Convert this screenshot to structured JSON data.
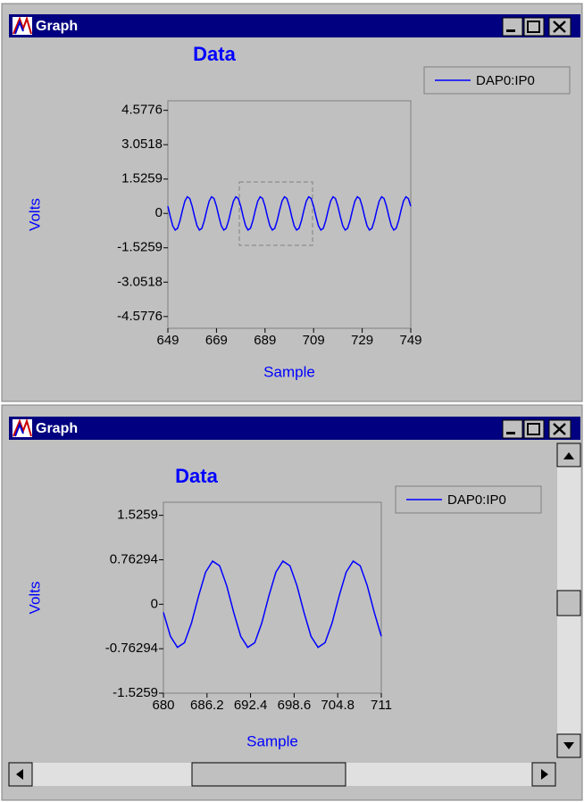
{
  "windows": [
    {
      "title": "Graph"
    },
    {
      "title": "Graph"
    }
  ],
  "chart_data": [
    {
      "type": "line",
      "title": "Data",
      "x_label": "Sample",
      "y_label": "Volts",
      "x": [
        649,
        650,
        651,
        652,
        653,
        654,
        655,
        656,
        657,
        658,
        659,
        660,
        661,
        662,
        663,
        664,
        665,
        666,
        667,
        668,
        669,
        670,
        671,
        672,
        673,
        674,
        675,
        676,
        677,
        678,
        679,
        680,
        681,
        682,
        683,
        684,
        685,
        686,
        687,
        688,
        689,
        690,
        691,
        692,
        693,
        694,
        695,
        696,
        697,
        698,
        699,
        700,
        701,
        702,
        703,
        704,
        705,
        706,
        707,
        708,
        709,
        710,
        711,
        712,
        713,
        714,
        715,
        716,
        717,
        718,
        719,
        720,
        721,
        722,
        723,
        724,
        725,
        726,
        727,
        728,
        729,
        730,
        731,
        732,
        733,
        734,
        735,
        736,
        737,
        738,
        739,
        740,
        741,
        742,
        743,
        744,
        745,
        746,
        747,
        748,
        749
      ],
      "series": [
        {
          "name": "DAP0:IP0",
          "color": "#0000ff",
          "values": [
            0.32,
            -0.14,
            -0.55,
            -0.74,
            -0.66,
            -0.32,
            0.14,
            0.55,
            0.74,
            0.66,
            0.32,
            -0.14,
            -0.55,
            -0.74,
            -0.66,
            -0.32,
            0.14,
            0.55,
            0.74,
            0.66,
            0.32,
            -0.14,
            -0.55,
            -0.74,
            -0.66,
            -0.32,
            0.14,
            0.55,
            0.74,
            0.66,
            0.32,
            -0.14,
            -0.55,
            -0.74,
            -0.66,
            -0.32,
            0.14,
            0.55,
            0.74,
            0.66,
            0.32,
            -0.14,
            -0.55,
            -0.74,
            -0.66,
            -0.32,
            0.14,
            0.55,
            0.74,
            0.66,
            0.32,
            -0.14,
            -0.55,
            -0.74,
            -0.66,
            -0.32,
            0.14,
            0.55,
            0.74,
            0.66,
            0.32,
            -0.14,
            -0.55,
            -0.74,
            -0.66,
            -0.32,
            0.14,
            0.55,
            0.74,
            0.66,
            0.32,
            -0.14,
            -0.55,
            -0.74,
            -0.66,
            -0.32,
            0.14,
            0.55,
            0.74,
            0.66,
            0.32,
            -0.14,
            -0.55,
            -0.74,
            -0.66,
            -0.32,
            0.14,
            0.55,
            0.74,
            0.66,
            0.32,
            -0.14,
            -0.55,
            -0.74,
            -0.66,
            -0.32,
            0.14,
            0.55,
            0.74,
            0.66,
            0.32
          ]
        }
      ],
      "xlim": [
        649,
        749
      ],
      "ylim": [
        -5.1,
        5.0
      ],
      "xticks": [
        649,
        669,
        689,
        709,
        729,
        749
      ],
      "yticks": [
        4.5776,
        3.0518,
        1.5259,
        0,
        -1.5259,
        -3.0518,
        -4.5776
      ]
    },
    {
      "type": "line",
      "title": "Data",
      "x_label": "Sample",
      "y_label": "Volts",
      "x": [
        680,
        681,
        682,
        683,
        684,
        685,
        686,
        687,
        688,
        689,
        690,
        691,
        692,
        693,
        694,
        695,
        696,
        697,
        698,
        699,
        700,
        701,
        702,
        703,
        704,
        705,
        706,
        707,
        708,
        709,
        710,
        711
      ],
      "series": [
        {
          "name": "DAP0:IP0",
          "color": "#0000ff",
          "values": [
            -0.14,
            -0.55,
            -0.74,
            -0.66,
            -0.32,
            0.14,
            0.55,
            0.74,
            0.66,
            0.32,
            -0.14,
            -0.55,
            -0.74,
            -0.66,
            -0.32,
            0.14,
            0.55,
            0.74,
            0.66,
            0.32,
            -0.14,
            -0.55,
            -0.74,
            -0.66,
            -0.32,
            0.14,
            0.55,
            0.74,
            0.66,
            0.32,
            -0.14,
            -0.55
          ]
        }
      ],
      "xlim": [
        680,
        711
      ],
      "ylim": [
        -1.5259,
        1.75
      ],
      "xticks": [
        680,
        686.2,
        692.4,
        698.6,
        704.8,
        711
      ],
      "yticks": [
        1.5259,
        0.76294,
        0,
        -0.76294,
        -1.5259
      ]
    }
  ]
}
